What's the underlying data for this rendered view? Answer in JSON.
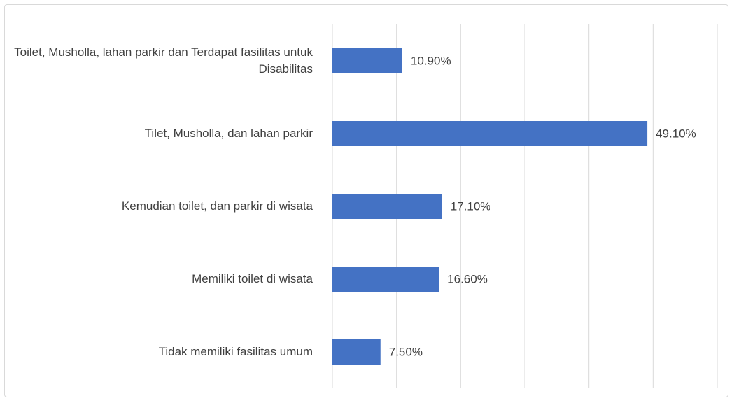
{
  "chart_data": {
    "type": "bar",
    "orientation": "horizontal",
    "categories": [
      "Toilet, Musholla, lahan parkir dan Terdapat fasilitas untuk Disabilitas",
      "Tilet, Musholla, dan lahan parkir",
      "Kemudian toilet, dan parkir di wisata",
      "Memiliki toilet di wisata",
      "Tidak memiliki fasilitas umum"
    ],
    "values": [
      10.9,
      49.1,
      17.1,
      16.6,
      7.5
    ],
    "value_labels": [
      "10.90%",
      "49.10%",
      "17.10%",
      "16.60%",
      "7.50%"
    ],
    "color": "#4472c4",
    "xlim": [
      0,
      60
    ],
    "xticks": [
      0,
      10,
      20,
      30,
      40,
      50,
      60
    ],
    "grid": true
  }
}
